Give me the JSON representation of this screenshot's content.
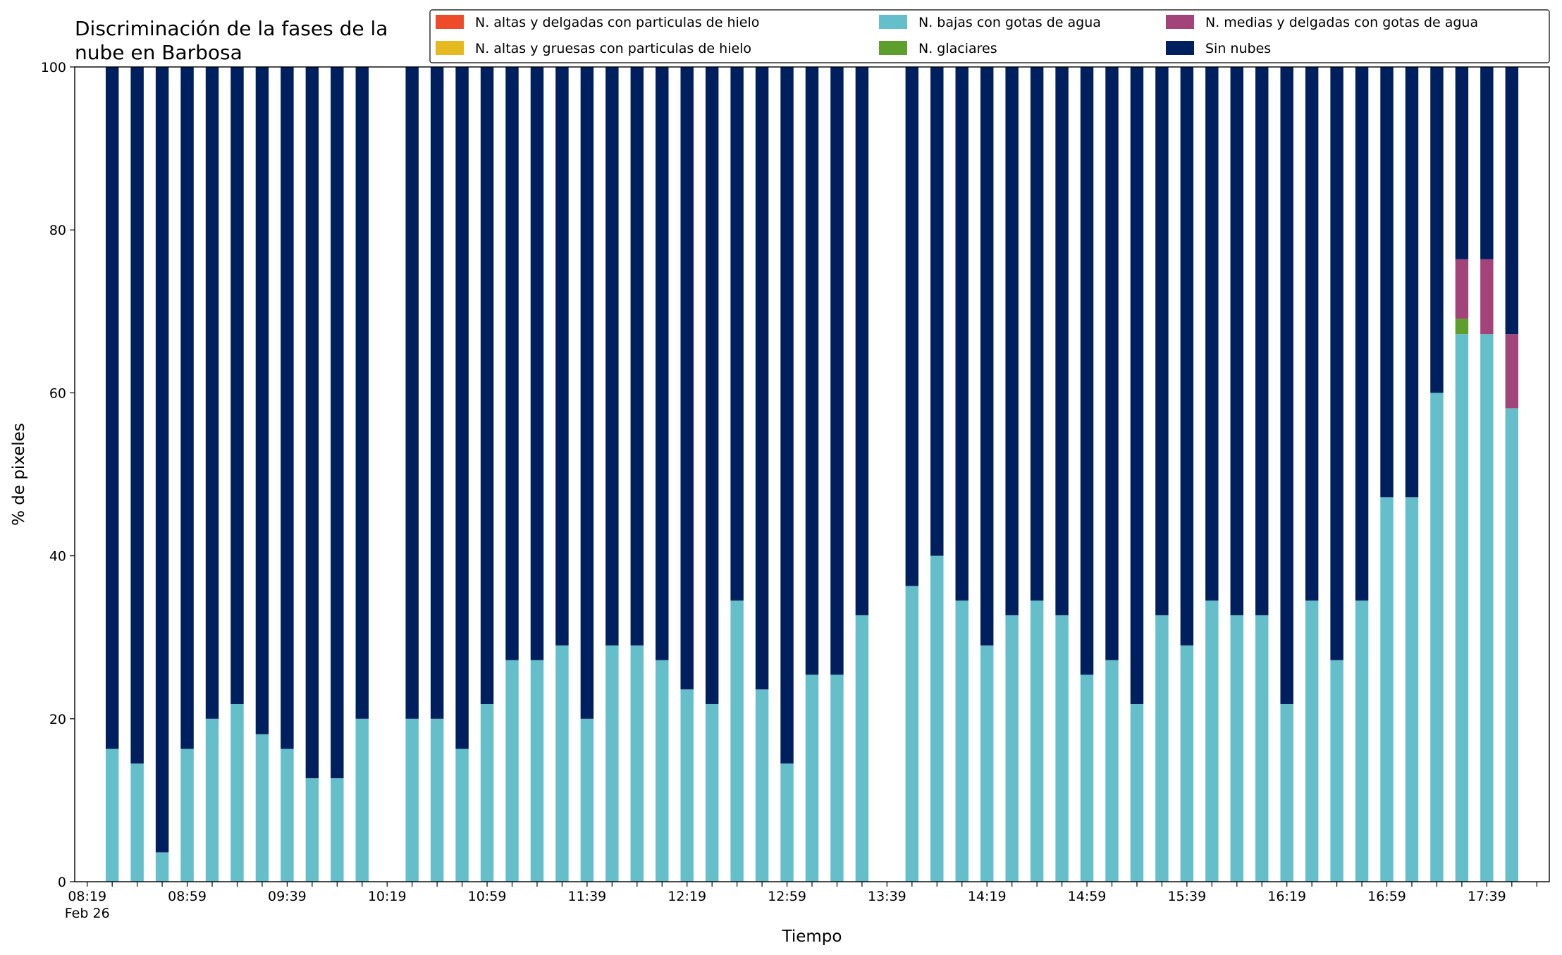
{
  "chart_data": {
    "type": "stacked_bar",
    "title": "Discriminación de la fases de la\nnube en Barbosa",
    "xlabel": "Tiempo",
    "ylabel": "% de pixeles",
    "x": [
      "Feb 26 08:29",
      "Feb 26 08:39",
      "Feb 26 08:49",
      "Feb 26 08:59",
      "Feb 26 09:09",
      "Feb 26 09:19",
      "Feb 26 09:29",
      "Feb 26 09:39",
      "Feb 26 09:49",
      "Feb 26 09:59",
      "Feb 26 10:09",
      "Feb 26 10:29",
      "Feb 26 10:39",
      "Feb 26 10:49",
      "Feb 26 10:59",
      "Feb 26 11:09",
      "Feb 26 11:19",
      "Feb 26 11:29",
      "Feb 26 11:39",
      "Feb 26 11:49",
      "Feb 26 11:59",
      "Feb 26 12:09",
      "Feb 26 12:19",
      "Feb 26 12:29",
      "Feb 26 12:39",
      "Feb 26 12:49",
      "Feb 26 12:59",
      "Feb 26 13:09",
      "Feb 26 13:19",
      "Feb 26 13:29",
      "Feb 26 13:49",
      "Feb 26 13:59",
      "Feb 26 14:09",
      "Feb 26 14:19",
      "Feb 26 14:29",
      "Feb 26 14:39",
      "Feb 26 14:49",
      "Feb 26 14:59",
      "Feb 26 15:09",
      "Feb 26 15:19",
      "Feb 26 15:29",
      "Feb 26 15:39",
      "Feb 26 15:49",
      "Feb 26 15:59",
      "Feb 26 16:09",
      "Feb 26 16:19",
      "Feb 26 16:29",
      "Feb 26 16:39",
      "Feb 26 16:49",
      "Feb 26 16:59",
      "Feb 26 17:09",
      "Feb 26 17:19",
      "Feb 26 17:29",
      "Feb 26 17:39",
      "Feb 26 17:49"
    ],
    "series": [
      {
        "name": "N. altas y delgadas con particulas de hielo",
        "color": "#ee4b2b",
        "values": [
          0,
          0,
          0,
          0,
          0,
          0,
          0,
          0,
          0,
          0,
          0,
          0,
          0,
          0,
          0,
          0,
          0,
          0,
          0,
          0,
          0,
          0,
          0,
          0,
          0,
          0,
          0,
          0,
          0,
          0,
          0,
          0,
          0,
          0,
          0,
          0,
          0,
          0,
          0,
          0,
          0,
          0,
          0,
          0,
          0,
          0,
          0,
          0,
          0,
          0,
          0,
          0,
          0,
          0,
          0
        ]
      },
      {
        "name": "N. altas y gruesas con particulas de hielo",
        "color": "#e6b91e",
        "values": [
          0,
          0,
          0,
          0,
          0,
          0,
          0,
          0,
          0,
          0,
          0,
          0,
          0,
          0,
          0,
          0,
          0,
          0,
          0,
          0,
          0,
          0,
          0,
          0,
          0,
          0,
          0,
          0,
          0,
          0,
          0,
          0,
          0,
          0,
          0,
          0,
          0,
          0,
          0,
          0,
          0,
          0,
          0,
          0,
          0,
          0,
          0,
          0,
          0,
          0,
          0,
          0,
          0,
          0,
          0
        ]
      },
      {
        "name": "N. bajas con gotas de agua",
        "color": "#65bfca",
        "values": [
          16.3,
          14.5,
          3.6,
          16.3,
          20,
          21.8,
          18.1,
          16.3,
          12.7,
          12.7,
          20,
          20,
          20,
          16.3,
          21.8,
          27.2,
          27.2,
          29,
          20,
          29,
          29,
          27.2,
          23.6,
          21.8,
          34.5,
          23.6,
          14.5,
          25.4,
          25.4,
          32.7,
          36.3,
          40,
          34.5,
          29,
          32.7,
          34.5,
          32.7,
          25.4,
          27.2,
          21.8,
          32.7,
          29,
          34.5,
          32.7,
          32.7,
          21.8,
          34.5,
          27.2,
          34.5,
          47.2,
          47.2,
          60,
          67.2,
          67.2,
          58.1
        ]
      },
      {
        "name": "N. glaciares",
        "color": "#5e9e2c",
        "values": [
          0,
          0,
          0,
          0,
          0,
          0,
          0,
          0,
          0,
          0,
          0,
          0,
          0,
          0,
          0,
          0,
          0,
          0,
          0,
          0,
          0,
          0,
          0,
          0,
          0,
          0,
          0,
          0,
          0,
          0,
          0,
          0,
          0,
          0,
          0,
          0,
          0,
          0,
          0,
          0,
          0,
          0,
          0,
          0,
          0,
          0,
          0,
          0,
          0,
          0,
          0,
          0,
          1.9,
          0,
          0
        ]
      },
      {
        "name": "N. medias y delgadas con gotas de agua",
        "color": "#a2437a",
        "values": [
          0,
          0,
          0,
          0,
          0,
          0,
          0,
          0,
          0,
          0,
          0,
          0,
          0,
          0,
          0,
          0,
          0,
          0,
          0,
          0,
          0,
          0,
          0,
          0,
          0,
          0,
          0,
          0,
          0,
          0,
          0,
          0,
          0,
          0,
          0,
          0,
          0,
          0,
          0,
          0,
          0,
          0,
          0,
          0,
          0,
          0,
          0,
          0,
          0,
          0,
          0,
          0,
          7.3,
          9.2,
          9.1
        ]
      },
      {
        "name": "Sin nubes",
        "color": "#001f5f",
        "values": [
          83.7,
          85.5,
          96.4,
          83.7,
          80,
          78.2,
          81.9,
          83.7,
          87.3,
          87.3,
          80,
          80,
          80,
          83.7,
          78.2,
          72.8,
          72.8,
          71,
          80,
          71,
          71,
          72.8,
          76.4,
          78.2,
          65.5,
          76.4,
          85.5,
          74.6,
          74.6,
          67.3,
          63.7,
          60,
          65.5,
          71,
          67.3,
          65.5,
          67.3,
          74.6,
          72.8,
          78.2,
          67.3,
          71,
          65.5,
          67.3,
          67.3,
          78.2,
          65.5,
          72.8,
          65.5,
          52.8,
          52.8,
          40,
          23.6,
          23.6,
          32.8
        ]
      }
    ],
    "xlim": [
      "Feb 26 08:14",
      "Feb 26 18:04"
    ],
    "xticks": [
      {
        "value": "Feb 26 08:19",
        "label": "08:19\nFeb 26"
      },
      {
        "value": "Feb 26 08:29",
        "label": null
      },
      {
        "value": "Feb 26 08:39",
        "label": null
      },
      {
        "value": "Feb 26 08:49",
        "label": null
      },
      {
        "value": "Feb 26 08:59",
        "label": "08:59"
      },
      {
        "value": "Feb 26 09:09",
        "label": null
      },
      {
        "value": "Feb 26 09:19",
        "label": null
      },
      {
        "value": "Feb 26 09:29",
        "label": null
      },
      {
        "value": "Feb 26 09:39",
        "label": "09:39"
      },
      {
        "value": "Feb 26 09:49",
        "label": null
      },
      {
        "value": "Feb 26 09:59",
        "label": null
      },
      {
        "value": "Feb 26 10:09",
        "label": null
      },
      {
        "value": "Feb 26 10:19",
        "label": "10:19"
      },
      {
        "value": "Feb 26 10:29",
        "label": null
      },
      {
        "value": "Feb 26 10:39",
        "label": null
      },
      {
        "value": "Feb 26 10:49",
        "label": null
      },
      {
        "value": "Feb 26 10:59",
        "label": "10:59"
      },
      {
        "value": "Feb 26 11:09",
        "label": null
      },
      {
        "value": "Feb 26 11:19",
        "label": null
      },
      {
        "value": "Feb 26 11:29",
        "label": null
      },
      {
        "value": "Feb 26 11:39",
        "label": "11:39"
      },
      {
        "value": "Feb 26 11:49",
        "label": null
      },
      {
        "value": "Feb 26 11:59",
        "label": null
      },
      {
        "value": "Feb 26 12:09",
        "label": null
      },
      {
        "value": "Feb 26 12:19",
        "label": "12:19"
      },
      {
        "value": "Feb 26 12:29",
        "label": null
      },
      {
        "value": "Feb 26 12:39",
        "label": null
      },
      {
        "value": "Feb 26 12:49",
        "label": null
      },
      {
        "value": "Feb 26 12:59",
        "label": "12:59"
      },
      {
        "value": "Feb 26 13:09",
        "label": null
      },
      {
        "value": "Feb 26 13:19",
        "label": null
      },
      {
        "value": "Feb 26 13:29",
        "label": null
      },
      {
        "value": "Feb 26 13:39",
        "label": "13:39"
      },
      {
        "value": "Feb 26 13:49",
        "label": null
      },
      {
        "value": "Feb 26 13:59",
        "label": null
      },
      {
        "value": "Feb 26 14:09",
        "label": null
      },
      {
        "value": "Feb 26 14:19",
        "label": "14:19"
      },
      {
        "value": "Feb 26 14:29",
        "label": null
      },
      {
        "value": "Feb 26 14:39",
        "label": null
      },
      {
        "value": "Feb 26 14:49",
        "label": null
      },
      {
        "value": "Feb 26 14:59",
        "label": "14:59"
      },
      {
        "value": "Feb 26 15:09",
        "label": null
      },
      {
        "value": "Feb 26 15:19",
        "label": null
      },
      {
        "value": "Feb 26 15:29",
        "label": null
      },
      {
        "value": "Feb 26 15:39",
        "label": "15:39"
      },
      {
        "value": "Feb 26 15:49",
        "label": null
      },
      {
        "value": "Feb 26 15:59",
        "label": null
      },
      {
        "value": "Feb 26 16:09",
        "label": null
      },
      {
        "value": "Feb 26 16:19",
        "label": "16:19"
      },
      {
        "value": "Feb 26 16:29",
        "label": null
      },
      {
        "value": "Feb 26 16:39",
        "label": null
      },
      {
        "value": "Feb 26 16:49",
        "label": null
      },
      {
        "value": "Feb 26 16:59",
        "label": "16:59"
      },
      {
        "value": "Feb 26 17:09",
        "label": null
      },
      {
        "value": "Feb 26 17:19",
        "label": null
      },
      {
        "value": "Feb 26 17:29",
        "label": null
      },
      {
        "value": "Feb 26 17:39",
        "label": "17:39"
      },
      {
        "value": "Feb 26 17:49",
        "label": null
      },
      {
        "value": "Feb 26 17:59",
        "label": null
      }
    ],
    "ylim": [
      0,
      100
    ],
    "yticks": [
      0,
      20,
      40,
      60,
      80,
      100
    ],
    "grid": false,
    "legend": "top"
  }
}
